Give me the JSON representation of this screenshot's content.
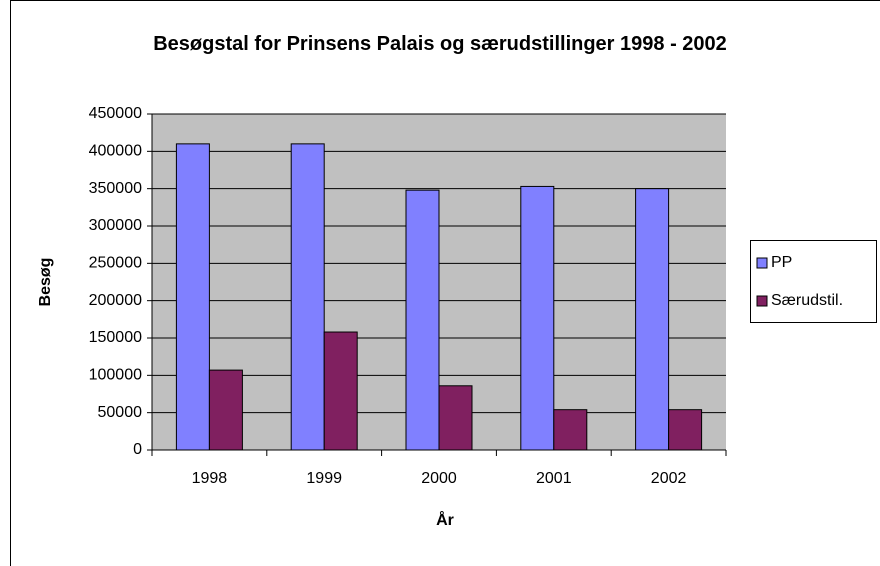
{
  "chart_data": {
    "type": "bar",
    "title": "Besøgstal for Prinsens Palais og særudstillinger 1998 - 2002",
    "x_label": "År",
    "y_label": "Besøg",
    "categories": [
      "1998",
      "1999",
      "2000",
      "2001",
      "2002"
    ],
    "series": [
      {
        "name": "PP",
        "color": "#8080ff",
        "values": [
          410000,
          410000,
          348000,
          353000,
          350000
        ]
      },
      {
        "name": "Særudstil.",
        "color": "#802060",
        "values": [
          107000,
          158000,
          86000,
          54000,
          54000
        ]
      }
    ],
    "ylim": [
      0,
      450000
    ],
    "yticks": [
      0,
      50000,
      100000,
      150000,
      200000,
      250000,
      300000,
      350000,
      400000,
      450000
    ],
    "grid": true,
    "legend": "right"
  }
}
